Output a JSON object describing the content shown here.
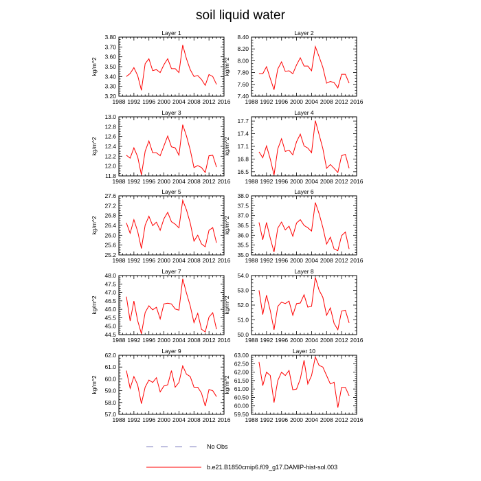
{
  "title": "soil liquid water",
  "legend": {
    "obs_label": "No Obs",
    "model_label": "b.e21.B1850cmip6.f09_g17.DAMIP-hist-sol.003",
    "obs_color": "#8080c0",
    "model_color": "#ff0000"
  },
  "chart_data": [
    {
      "type": "line",
      "title": "Layer 1",
      "xlabel": "",
      "ylabel": "kg/m^2",
      "xlim": [
        1988,
        2016
      ],
      "ylim": [
        3.2,
        3.8
      ],
      "xticks": [
        1988,
        1992,
        1996,
        2000,
        2004,
        2008,
        2012,
        2016
      ],
      "yticks": [
        "3.20",
        "3.30",
        "3.40",
        "3.50",
        "3.60",
        "3.70",
        "3.80"
      ],
      "x": [
        1990,
        1991,
        1992,
        1993,
        1994,
        1995,
        1996,
        1997,
        1998,
        1999,
        2000,
        2001,
        2002,
        2003,
        2004,
        2005,
        2006,
        2007,
        2008,
        2009,
        2010,
        2011,
        2012,
        2013,
        2014
      ],
      "values": [
        3.4,
        3.43,
        3.49,
        3.41,
        3.26,
        3.53,
        3.58,
        3.46,
        3.47,
        3.44,
        3.52,
        3.58,
        3.48,
        3.48,
        3.44,
        3.72,
        3.58,
        3.47,
        3.4,
        3.41,
        3.37,
        3.31,
        3.42,
        3.4,
        3.32
      ]
    },
    {
      "type": "line",
      "title": "Layer 2",
      "xlabel": "",
      "ylabel": "kg/m^2",
      "xlim": [
        1988,
        2016
      ],
      "ylim": [
        7.4,
        8.4
      ],
      "xticks": [
        1988,
        1992,
        1996,
        2000,
        2004,
        2008,
        2012,
        2016
      ],
      "yticks": [
        "7.40",
        "7.60",
        "7.80",
        "8.00",
        "8.20",
        "8.40"
      ],
      "x": [
        1990,
        1991,
        1992,
        1993,
        1994,
        1995,
        1996,
        1997,
        1998,
        1999,
        2000,
        2001,
        2002,
        2003,
        2004,
        2005,
        2006,
        2007,
        2008,
        2009,
        2010,
        2011,
        2012,
        2013,
        2014
      ],
      "values": [
        7.78,
        7.78,
        7.9,
        7.7,
        7.51,
        7.86,
        7.98,
        7.82,
        7.83,
        7.78,
        7.93,
        8.05,
        7.91,
        7.91,
        7.83,
        8.24,
        8.07,
        7.89,
        7.62,
        7.65,
        7.63,
        7.54,
        7.77,
        7.77,
        7.62
      ]
    },
    {
      "type": "line",
      "title": "Layer 3",
      "xlabel": "",
      "ylabel": "kg/m^2",
      "xlim": [
        1988,
        2016
      ],
      "ylim": [
        11.8,
        13.0
      ],
      "xticks": [
        1988,
        1992,
        1996,
        2000,
        2004,
        2008,
        2012,
        2016
      ],
      "yticks": [
        "11.8",
        "12.0",
        "12.2",
        "12.4",
        "12.6",
        "12.8",
        "13.0"
      ],
      "x": [
        1990,
        1991,
        1992,
        1993,
        1994,
        1995,
        1996,
        1997,
        1998,
        1999,
        2000,
        2001,
        2002,
        2003,
        2004,
        2005,
        2006,
        2007,
        2008,
        2009,
        2010,
        2011,
        2012,
        2013,
        2014
      ],
      "values": [
        12.22,
        12.16,
        12.37,
        12.19,
        11.82,
        12.3,
        12.51,
        12.27,
        12.27,
        12.21,
        12.41,
        12.61,
        12.39,
        12.37,
        12.22,
        12.84,
        12.61,
        12.33,
        11.97,
        12.01,
        11.97,
        11.87,
        12.21,
        12.22,
        11.98
      ]
    },
    {
      "type": "line",
      "title": "Layer 4",
      "xlabel": "",
      "ylabel": "kg/m^2",
      "xlim": [
        1988,
        2016
      ],
      "ylim": [
        16.4,
        17.8
      ],
      "xticks": [
        1988,
        1992,
        1996,
        2000,
        2004,
        2008,
        2012,
        2016
      ],
      "yticks": [
        "16.5",
        "16.8",
        "17.1",
        "17.4",
        "17.7"
      ],
      "x": [
        1990,
        1991,
        1992,
        1993,
        1994,
        1995,
        1996,
        1997,
        1998,
        1999,
        2000,
        2001,
        2002,
        2003,
        2004,
        2005,
        2006,
        2007,
        2008,
        2009,
        2010,
        2011,
        2012,
        2013,
        2014
      ],
      "values": [
        16.97,
        16.83,
        17.11,
        16.8,
        16.42,
        17.04,
        17.28,
        16.98,
        17.01,
        16.9,
        17.21,
        17.39,
        17.11,
        17.06,
        16.95,
        17.71,
        17.38,
        17.05,
        16.58,
        16.67,
        16.58,
        16.48,
        16.88,
        16.91,
        16.58
      ]
    },
    {
      "type": "line",
      "title": "Layer 5",
      "xlabel": "",
      "ylabel": "kg/m^2",
      "xlim": [
        1988,
        2016
      ],
      "ylim": [
        25.2,
        27.6
      ],
      "xticks": [
        1988,
        1992,
        1996,
        2000,
        2004,
        2008,
        2012,
        2016
      ],
      "yticks": [
        "25.2",
        "25.6",
        "26.0",
        "26.4",
        "26.8",
        "27.2",
        "27.6"
      ],
      "x": [
        1990,
        1991,
        1992,
        1993,
        1994,
        1995,
        1996,
        1997,
        1998,
        1999,
        2000,
        2001,
        2002,
        2003,
        2004,
        2005,
        2006,
        2007,
        2008,
        2009,
        2010,
        2011,
        2012,
        2013,
        2014
      ],
      "values": [
        26.5,
        26.08,
        26.63,
        26.16,
        25.46,
        26.41,
        26.77,
        26.39,
        26.53,
        26.2,
        26.67,
        26.93,
        26.55,
        26.45,
        26.3,
        27.42,
        27.03,
        26.5,
        25.76,
        26.0,
        25.65,
        25.53,
        26.2,
        26.31,
        25.69
      ]
    },
    {
      "type": "line",
      "title": "Layer 6",
      "xlabel": "",
      "ylabel": "kg/m^2",
      "xlim": [
        1988,
        2016
      ],
      "ylim": [
        35.0,
        38.0
      ],
      "xticks": [
        1988,
        1992,
        1996,
        2000,
        2004,
        2008,
        2012,
        2016
      ],
      "yticks": [
        "35.0",
        "35.5",
        "36.0",
        "36.5",
        "37.0",
        "37.5",
        "38.0"
      ],
      "x": [
        1990,
        1991,
        1992,
        1993,
        1994,
        1995,
        1996,
        1997,
        1998,
        1999,
        2000,
        2001,
        2002,
        2003,
        2004,
        2005,
        2006,
        2007,
        2008,
        2009,
        2010,
        2011,
        2012,
        2013,
        2014
      ],
      "values": [
        36.65,
        35.77,
        36.65,
        35.85,
        35.15,
        36.36,
        36.67,
        36.27,
        36.46,
        35.95,
        36.62,
        36.79,
        36.5,
        36.38,
        36.21,
        37.66,
        37.1,
        36.4,
        35.55,
        35.9,
        35.3,
        35.22,
        35.98,
        36.16,
        35.3
      ]
    },
    {
      "type": "line",
      "title": "Layer 7",
      "xlabel": "",
      "ylabel": "kg/m^2",
      "xlim": [
        1988,
        2016
      ],
      "ylim": [
        44.5,
        48.0
      ],
      "xticks": [
        1988,
        1992,
        1996,
        2000,
        2004,
        2008,
        2012,
        2016
      ],
      "yticks": [
        "44.5",
        "45.0",
        "45.5",
        "46.0",
        "46.5",
        "47.0",
        "47.5",
        "48.0"
      ],
      "x": [
        1990,
        1991,
        1992,
        1993,
        1994,
        1995,
        1996,
        1997,
        1998,
        1999,
        2000,
        2001,
        2002,
        2003,
        2004,
        2005,
        2006,
        2007,
        2008,
        2009,
        2010,
        2011,
        2012,
        2013,
        2014
      ],
      "values": [
        46.75,
        45.31,
        46.49,
        45.33,
        44.55,
        45.81,
        46.21,
        45.97,
        46.12,
        45.43,
        46.32,
        46.36,
        46.32,
        46.02,
        45.95,
        47.81,
        46.96,
        46.21,
        45.21,
        45.76,
        44.82,
        44.66,
        45.54,
        45.8,
        44.82
      ]
    },
    {
      "type": "line",
      "title": "Layer 8",
      "xlabel": "",
      "ylabel": "kg/m^2",
      "xlim": [
        1988,
        2016
      ],
      "ylim": [
        50.0,
        54.0
      ],
      "xticks": [
        1988,
        1992,
        1996,
        2000,
        2004,
        2008,
        2012,
        2016
      ],
      "yticks": [
        "50.0",
        "51.0",
        "52.0",
        "53.0",
        "54.0"
      ],
      "x": [
        1990,
        1991,
        1992,
        1993,
        1994,
        1995,
        1996,
        1997,
        1998,
        1999,
        2000,
        2001,
        2002,
        2003,
        2004,
        2005,
        2006,
        2007,
        2008,
        2009,
        2010,
        2011,
        2012,
        2013,
        2014
      ],
      "values": [
        53.0,
        51.36,
        52.67,
        51.63,
        50.33,
        51.91,
        52.2,
        52.1,
        52.27,
        51.31,
        52.1,
        52.14,
        52.7,
        51.86,
        51.92,
        53.87,
        53.01,
        52.53,
        51.31,
        51.81,
        50.76,
        50.33,
        51.59,
        51.65,
        50.8
      ]
    },
    {
      "type": "line",
      "title": "Layer 9",
      "xlabel": "",
      "ylabel": "kg/m^2",
      "xlim": [
        1988,
        2016
      ],
      "ylim": [
        57.0,
        62.0
      ],
      "xticks": [
        1988,
        1992,
        1996,
        2000,
        2004,
        2008,
        2012,
        2016
      ],
      "yticks": [
        "57.0",
        "58.0",
        "59.0",
        "60.0",
        "61.0",
        "62.0"
      ],
      "x": [
        1990,
        1991,
        1992,
        1993,
        1994,
        1995,
        1996,
        1997,
        1998,
        1999,
        2000,
        2001,
        2002,
        2003,
        2004,
        2005,
        2006,
        2007,
        2008,
        2009,
        2010,
        2011,
        2012,
        2013,
        2014
      ],
      "values": [
        60.7,
        59.2,
        60.2,
        59.5,
        57.9,
        59.3,
        59.9,
        59.7,
        60.1,
        58.9,
        59.4,
        59.5,
        60.7,
        59.3,
        59.7,
        61.1,
        60.4,
        60.2,
        59.3,
        59.3,
        58.8,
        57.7,
        59.1,
        59.0,
        58.5
      ]
    },
    {
      "type": "line",
      "title": "Layer 10",
      "xlabel": "",
      "ylabel": "kg/m^2",
      "xlim": [
        1988,
        2016
      ],
      "ylim": [
        59.5,
        63.0
      ],
      "xticks": [
        1988,
        1992,
        1996,
        2000,
        2004,
        2008,
        2012,
        2016
      ],
      "yticks": [
        "59.50",
        "60.00",
        "60.50",
        "61.00",
        "61.50",
        "62.00",
        "62.50",
        "63.00"
      ],
      "x": [
        1990,
        1991,
        1992,
        1993,
        1994,
        1995,
        1996,
        1997,
        1998,
        1999,
        2000,
        2001,
        2002,
        2003,
        2004,
        2005,
        2006,
        2007,
        2008,
        2009,
        2010,
        2011,
        2012,
        2013,
        2014
      ],
      "values": [
        62.6,
        61.2,
        62.0,
        61.8,
        60.2,
        61.5,
        62.0,
        61.8,
        62.1,
        60.95,
        61.0,
        61.6,
        62.7,
        61.3,
        61.8,
        62.9,
        62.4,
        62.3,
        61.8,
        61.3,
        61.4,
        59.9,
        61.1,
        61.1,
        60.6
      ]
    }
  ]
}
